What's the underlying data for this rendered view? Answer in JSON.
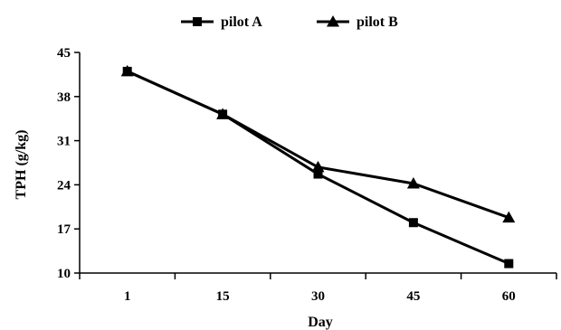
{
  "chart_data": {
    "type": "line",
    "title": "",
    "xlabel": "Day",
    "ylabel": "TPH (g/kg)",
    "categories": [
      "1",
      "15",
      "30",
      "45",
      "60"
    ],
    "ylim": [
      10,
      45
    ],
    "yticks": [
      "10",
      "17",
      "24",
      "31",
      "38",
      "45"
    ],
    "grid": false,
    "legend": "top-center",
    "series": [
      {
        "name": "pilot A",
        "marker": "square",
        "values": [
          42,
          35.2,
          25.7,
          18,
          11.5
        ]
      },
      {
        "name": "pilot B",
        "marker": "triangle",
        "values": [
          42,
          35.2,
          26.8,
          24.2,
          18.8
        ]
      }
    ],
    "colors": {
      "line": "#000000",
      "marker": "#000000"
    }
  }
}
